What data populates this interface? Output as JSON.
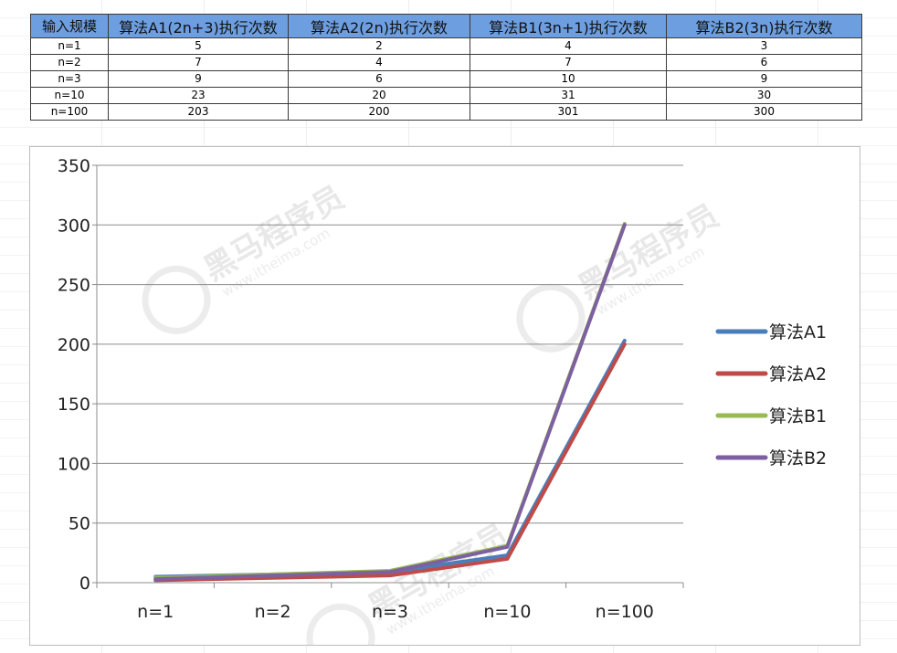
{
  "table": {
    "headers": [
      "输入规模",
      "算法A1(2n+3)执行次数",
      "算法A2(2n)执行次数",
      "算法B1(3n+1)执行次数",
      "算法B2(3n)执行次数"
    ],
    "rows": [
      [
        "n=1",
        "5",
        "2",
        "4",
        "3"
      ],
      [
        "n=2",
        "7",
        "4",
        "7",
        "6"
      ],
      [
        "n=3",
        "9",
        "6",
        "10",
        "9"
      ],
      [
        "n=10",
        "23",
        "20",
        "31",
        "30"
      ],
      [
        "n=100",
        "203",
        "200",
        "301",
        "300"
      ]
    ]
  },
  "chart_data": {
    "type": "line",
    "categories": [
      "n=1",
      "n=2",
      "n=3",
      "n=10",
      "n=100"
    ],
    "series": [
      {
        "name": "算法A1",
        "values": [
          5,
          7,
          9,
          23,
          203
        ],
        "color": "#4a7ebb"
      },
      {
        "name": "算法A2",
        "values": [
          2,
          4,
          6,
          20,
          200
        ],
        "color": "#be4b48"
      },
      {
        "name": "算法B1",
        "values": [
          4,
          7,
          10,
          31,
          301
        ],
        "color": "#98b954"
      },
      {
        "name": "算法B2",
        "values": [
          3,
          6,
          9,
          30,
          300
        ],
        "color": "#7d60a0"
      }
    ],
    "yticks": [
      0,
      50,
      100,
      150,
      200,
      250,
      300,
      350
    ],
    "ylim": [
      0,
      350
    ],
    "grid": true,
    "legend_position": "right"
  },
  "watermark": {
    "text": "黑马程序员",
    "sub": "www.itheima.com"
  }
}
